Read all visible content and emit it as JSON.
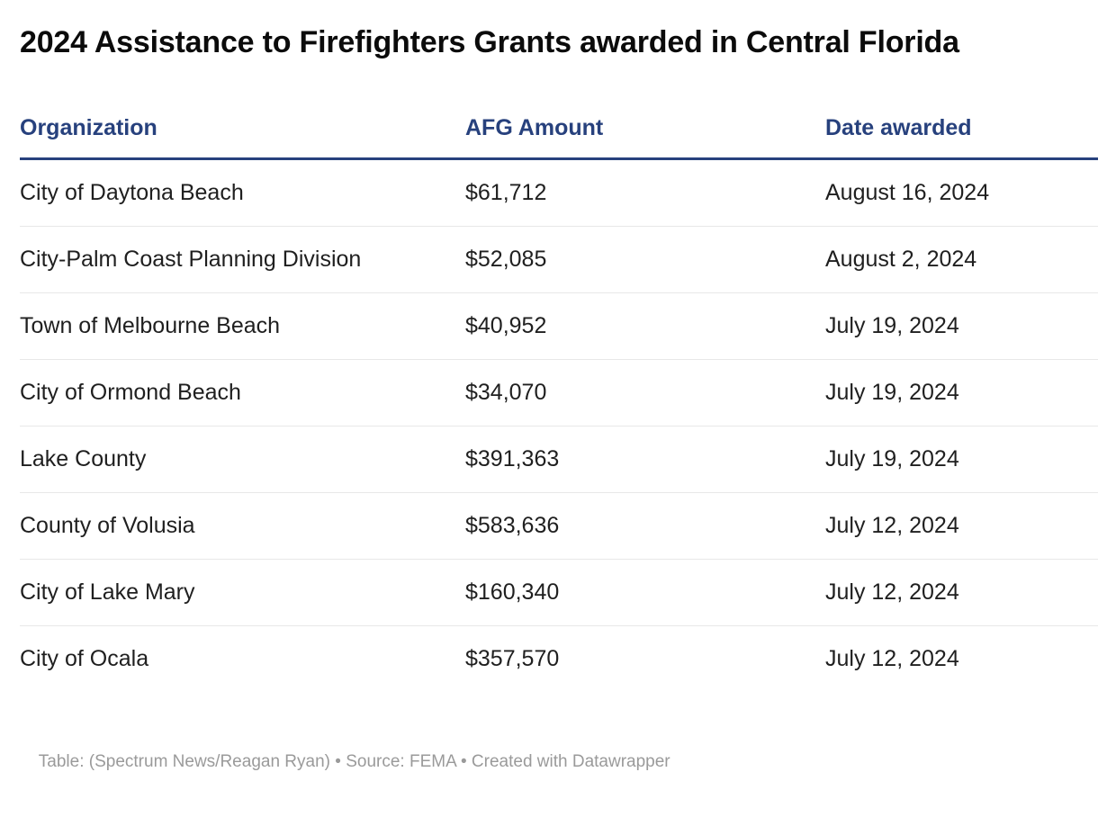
{
  "title": "2024 Assistance to Firefighters Grants awarded in Central Florida",
  "colors": {
    "header_blue": "#27417d",
    "header_rule_blue": "#27417d",
    "row_divider_gray": "#e8e8e8",
    "title_text": "#0b0b0b",
    "body_text": "#1f1f1f",
    "footer_text": "#9a9a9a",
    "background": "#ffffff"
  },
  "table": {
    "columns": [
      {
        "key": "organization",
        "label": "Organization"
      },
      {
        "key": "amount",
        "label": "AFG Amount"
      },
      {
        "key": "date",
        "label": "Date awarded"
      }
    ],
    "rows": [
      {
        "organization": "City of Daytona Beach",
        "amount": "$61,712",
        "date": "August 16, 2024"
      },
      {
        "organization": "City-Palm Coast Planning Division",
        "amount": "$52,085",
        "date": "August 2, 2024"
      },
      {
        "organization": "Town of Melbourne Beach",
        "amount": "$40,952",
        "date": "July 19, 2024"
      },
      {
        "organization": "City of Ormond Beach",
        "amount": "$34,070",
        "date": "July 19, 2024"
      },
      {
        "organization": "Lake County",
        "amount": "$391,363",
        "date": "July 19, 2024"
      },
      {
        "organization": "County of Volusia",
        "amount": "$583,636",
        "date": "July 12, 2024"
      },
      {
        "organization": "City of Lake Mary",
        "amount": "$160,340",
        "date": "July 12, 2024"
      },
      {
        "organization": "City of Ocala",
        "amount": "$357,570",
        "date": "July 12, 2024"
      }
    ]
  },
  "footer": {
    "byline": "Table: (Spectrum News/Reagan Ryan)",
    "separator": " • ",
    "source": "Source: FEMA",
    "credit": "Created with Datawrapper"
  },
  "chart_data": {
    "type": "table",
    "title": "2024 Assistance to Firefighters Grants awarded in Central Florida",
    "columns": [
      "Organization",
      "AFG Amount",
      "Date awarded"
    ],
    "rows": [
      [
        "City of Daytona Beach",
        "$61,712",
        "August 16, 2024"
      ],
      [
        "City-Palm Coast Planning Division",
        "$52,085",
        "August 2, 2024"
      ],
      [
        "Town of Melbourne Beach",
        "$40,952",
        "July 19, 2024"
      ],
      [
        "City of Ormond Beach",
        "$34,070",
        "July 19, 2024"
      ],
      [
        "Lake County",
        "$391,363",
        "July 19, 2024"
      ],
      [
        "County of Volusia",
        "$583,636",
        "July 12, 2024"
      ],
      [
        "City of Lake Mary",
        "$160,340",
        "July 12, 2024"
      ],
      [
        "City of Ocala",
        "$357,570",
        "July 12, 2024"
      ]
    ],
    "amounts_numeric": [
      61712,
      52085,
      40952,
      34070,
      391363,
      583636,
      160340,
      357570
    ],
    "byline": "Table: (Spectrum News/Reagan Ryan)",
    "source": "FEMA",
    "credit": "Created with Datawrapper"
  }
}
